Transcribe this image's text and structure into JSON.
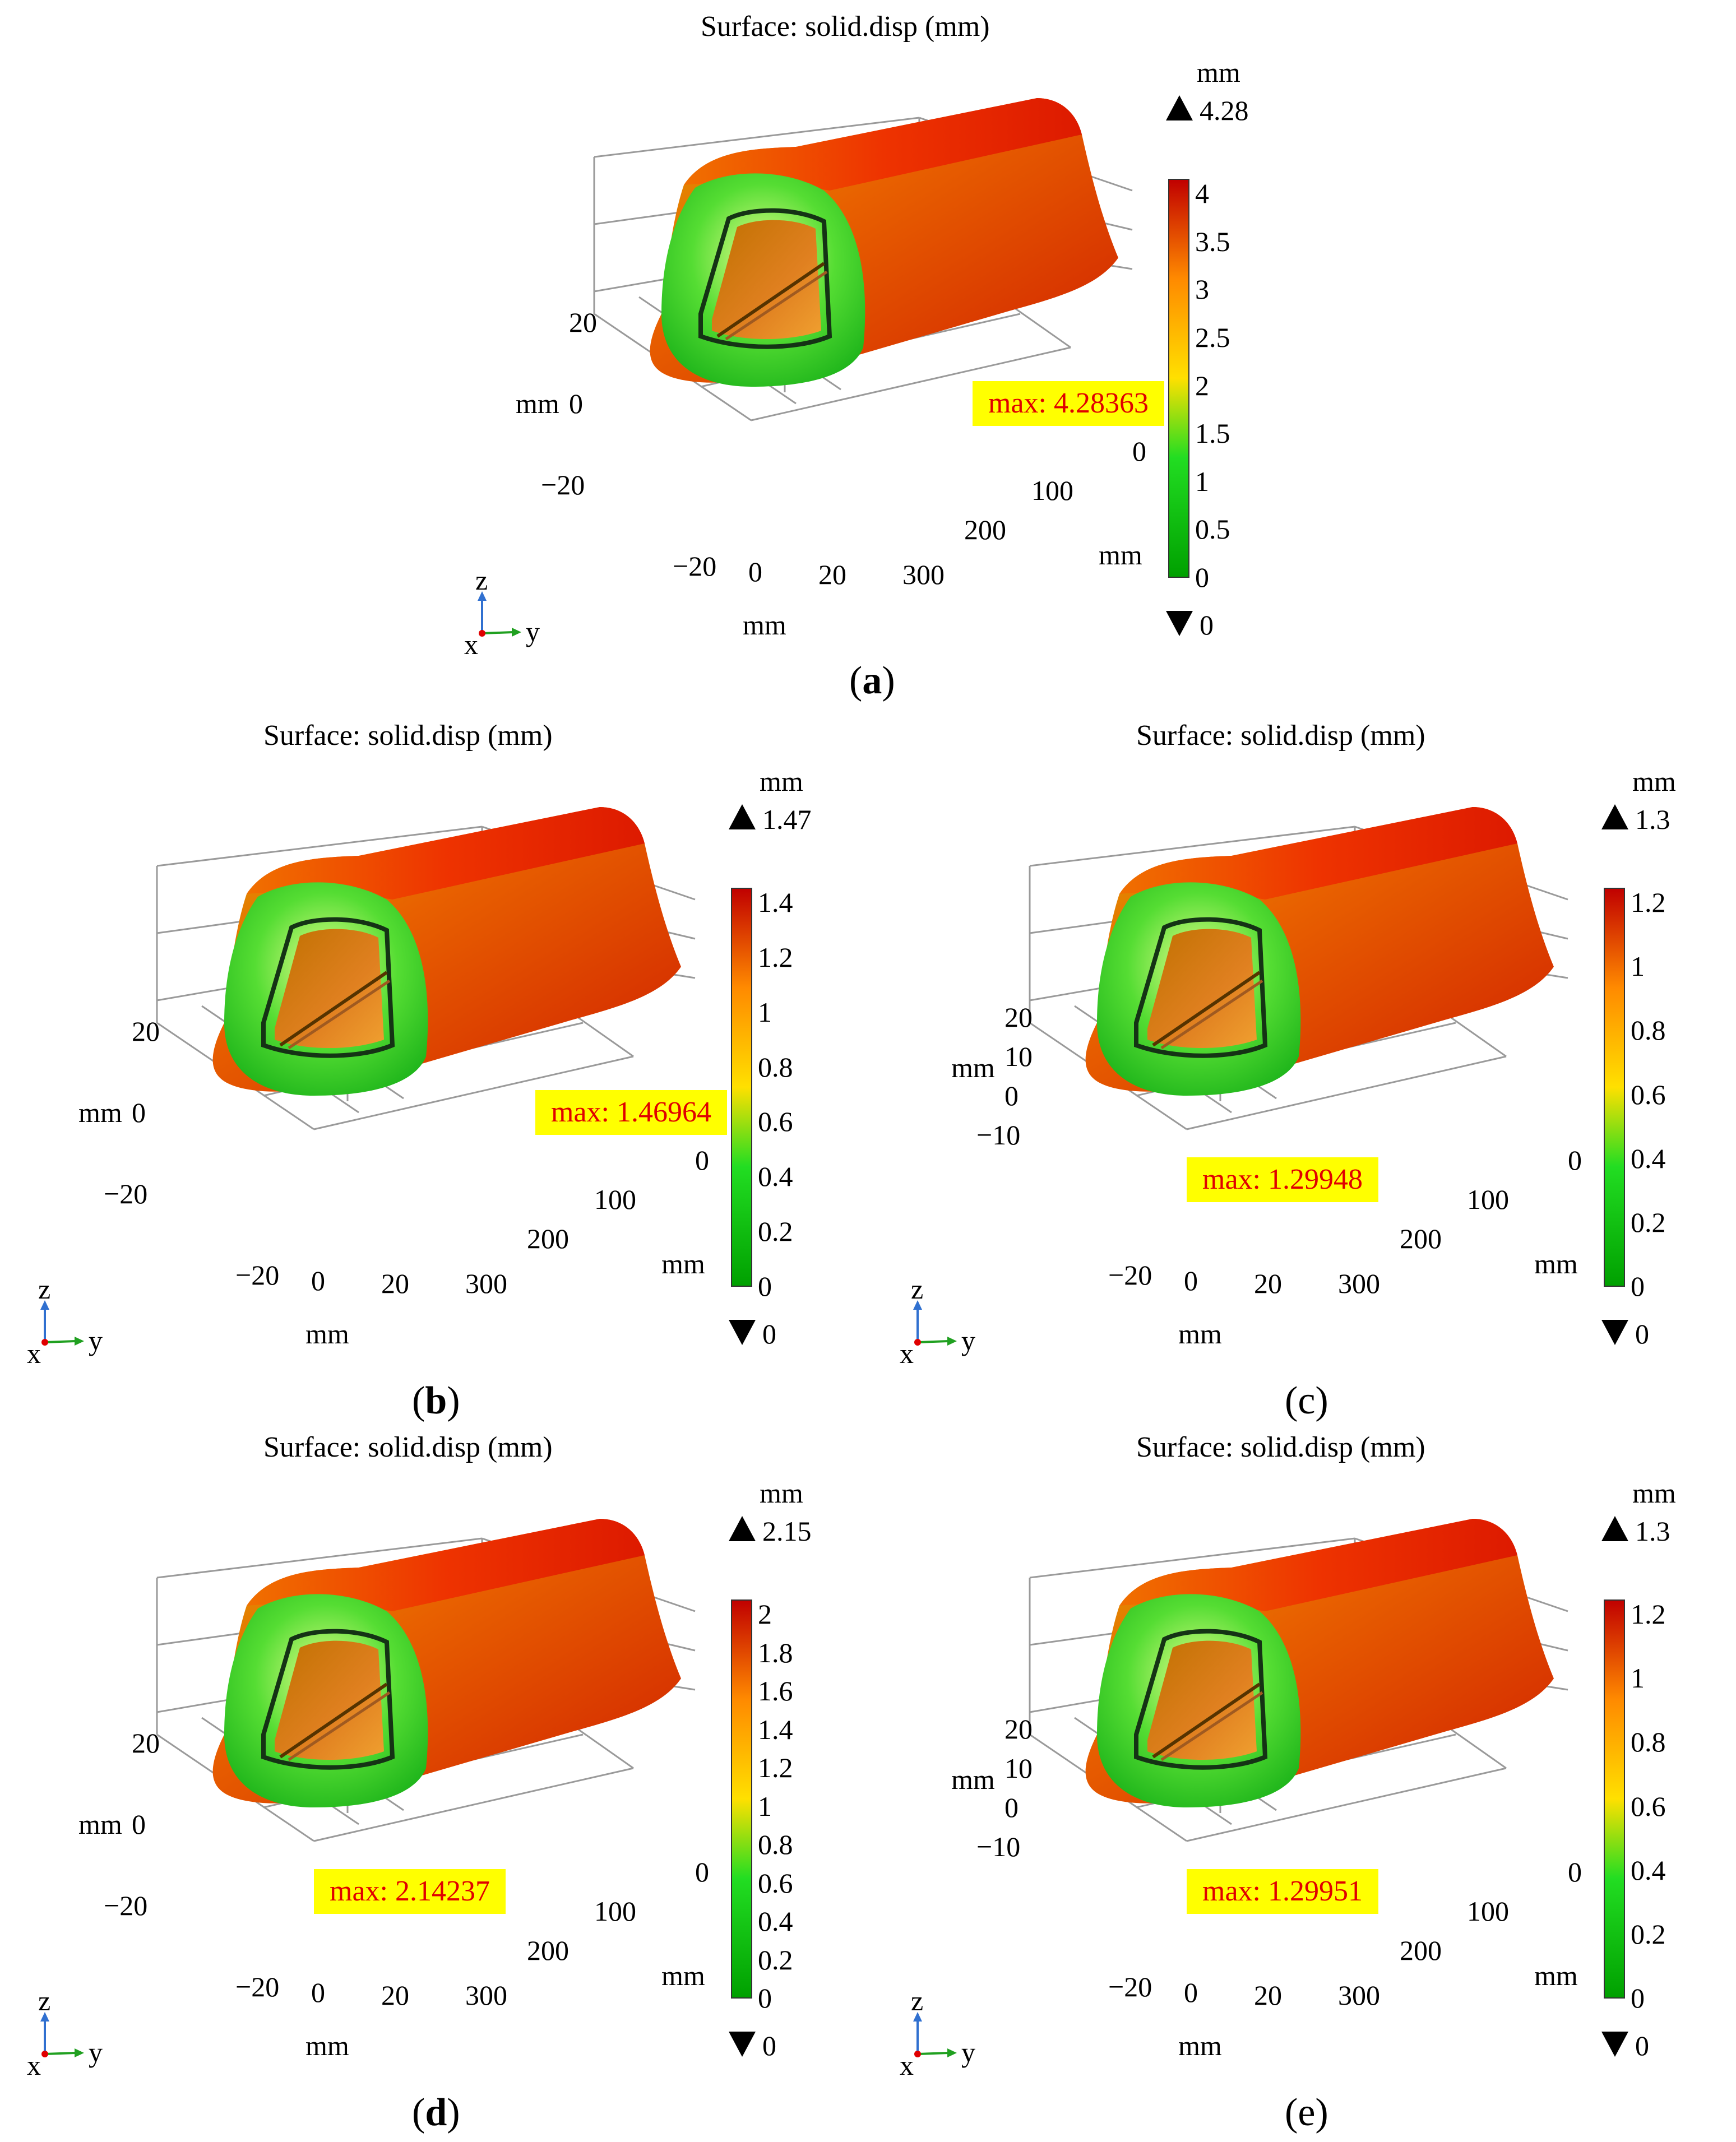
{
  "panels": [
    {
      "id": "a",
      "title": "Surface: solid.disp (mm)",
      "max_label": "max: 4.28363",
      "colorbar": {
        "unit": "mm",
        "max": "4.28",
        "min": "0",
        "ticks": [
          "4",
          "3.5",
          "3",
          "2.5",
          "2",
          "1.5",
          "1",
          "0.5",
          "0"
        ]
      },
      "axes": {
        "z_ticks": [
          "20",
          "0",
          "−20"
        ],
        "z_unit": "mm",
        "y_ticks": [
          "0",
          "100",
          "200",
          "300"
        ],
        "y_unit": "mm",
        "x_ticks": [
          "−20",
          "0",
          "20"
        ],
        "x_unit": "mm"
      },
      "caption_open": "(",
      "caption_letter": "a",
      "caption_close": ")"
    },
    {
      "id": "b",
      "title": "Surface: solid.disp (mm)",
      "max_label": "max: 1.46964",
      "colorbar": {
        "unit": "mm",
        "max": "1.47",
        "min": "0",
        "ticks": [
          "1.4",
          "1.2",
          "1",
          "0.8",
          "0.6",
          "0.4",
          "0.2",
          "0"
        ]
      },
      "axes": {
        "z_ticks": [
          "20",
          "0",
          "−20"
        ],
        "z_unit": "mm",
        "y_ticks": [
          "0",
          "100",
          "200",
          "300"
        ],
        "y_unit": "mm",
        "x_ticks": [
          "−20",
          "0",
          "20"
        ],
        "x_unit": "mm"
      },
      "caption_open": "(",
      "caption_letter": "b",
      "caption_close": ")"
    },
    {
      "id": "c",
      "title": "Surface: solid.disp (mm)",
      "max_label": "max: 1.29948",
      "colorbar": {
        "unit": "mm",
        "max": "1.3",
        "min": "0",
        "ticks": [
          "1.2",
          "1",
          "0.8",
          "0.6",
          "0.4",
          "0.2",
          "0"
        ]
      },
      "axes": {
        "z_ticks": [
          "20",
          "10",
          "0",
          "−10"
        ],
        "z_unit": "mm",
        "y_ticks": [
          "0",
          "100",
          "200",
          "300"
        ],
        "y_unit": "mm",
        "x_ticks": [
          "−20",
          "0",
          "20"
        ],
        "x_unit": "mm"
      },
      "caption_open": "(",
      "caption_letter": "c",
      "caption_close": ")"
    },
    {
      "id": "d",
      "title": "Surface: solid.disp (mm)",
      "max_label": "max: 2.14237",
      "colorbar": {
        "unit": "mm",
        "max": "2.15",
        "min": "0",
        "ticks": [
          "2",
          "1.8",
          "1.6",
          "1.4",
          "1.2",
          "1",
          "0.8",
          "0.6",
          "0.4",
          "0.2",
          "0"
        ]
      },
      "axes": {
        "z_ticks": [
          "20",
          "0",
          "−20"
        ],
        "z_unit": "mm",
        "y_ticks": [
          "0",
          "100",
          "200",
          "300"
        ],
        "y_unit": "mm",
        "x_ticks": [
          "−20",
          "0",
          "20"
        ],
        "x_unit": "mm"
      },
      "caption_open": "(",
      "caption_letter": "d",
      "caption_close": ")"
    },
    {
      "id": "e",
      "title": "Surface: solid.disp (mm)",
      "max_label": "max: 1.29951",
      "colorbar": {
        "unit": "mm",
        "max": "1.3",
        "min": "0",
        "ticks": [
          "1.2",
          "1",
          "0.8",
          "0.6",
          "0.4",
          "0.2",
          "0"
        ]
      },
      "axes": {
        "z_ticks": [
          "20",
          "10",
          "0",
          "−10"
        ],
        "z_unit": "mm",
        "y_ticks": [
          "0",
          "100",
          "200",
          "300"
        ],
        "y_unit": "mm",
        "x_ticks": [
          "−20",
          "0",
          "20"
        ],
        "x_unit": "mm"
      },
      "caption_open": "(",
      "caption_letter": "e",
      "caption_close": ")"
    }
  ],
  "triad": {
    "z": "z",
    "x": "x",
    "y": "y"
  },
  "colors": {
    "max_label_bg": "#ffff00",
    "max_label_text": "#e00000",
    "colorbar_top": "#c80000",
    "colorbar_mid": "#ffd400",
    "colorbar_bottom": "#00b000"
  }
}
